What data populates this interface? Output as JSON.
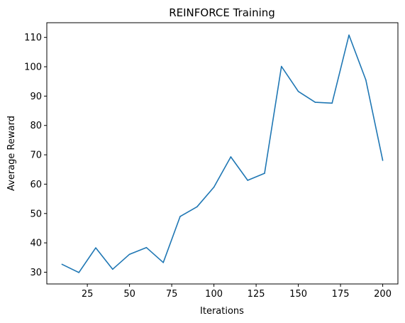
{
  "chart_data": {
    "type": "line",
    "title": "REINFORCE Training",
    "xlabel": "Iterations",
    "ylabel": "Average Reward",
    "xlim": [
      1,
      209
    ],
    "ylim": [
      26,
      115
    ],
    "xticks": [
      25,
      50,
      75,
      100,
      125,
      150,
      175,
      200
    ],
    "yticks": [
      30,
      40,
      50,
      60,
      70,
      80,
      90,
      100,
      110
    ],
    "grid": false,
    "legend": "none",
    "series": [
      {
        "color": "#1f77b4",
        "x": [
          10,
          20,
          30,
          40,
          50,
          60,
          70,
          80,
          90,
          100,
          110,
          120,
          130,
          140,
          150,
          160,
          170,
          180,
          190,
          200
        ],
        "y": [
          32.7,
          29.9,
          38.3,
          31.0,
          36.1,
          38.4,
          33.3,
          49.0,
          52.3,
          59.0,
          69.3,
          61.3,
          63.7,
          100.1,
          91.6,
          87.9,
          87.6,
          110.8,
          95.5,
          68.1
        ]
      }
    ]
  }
}
